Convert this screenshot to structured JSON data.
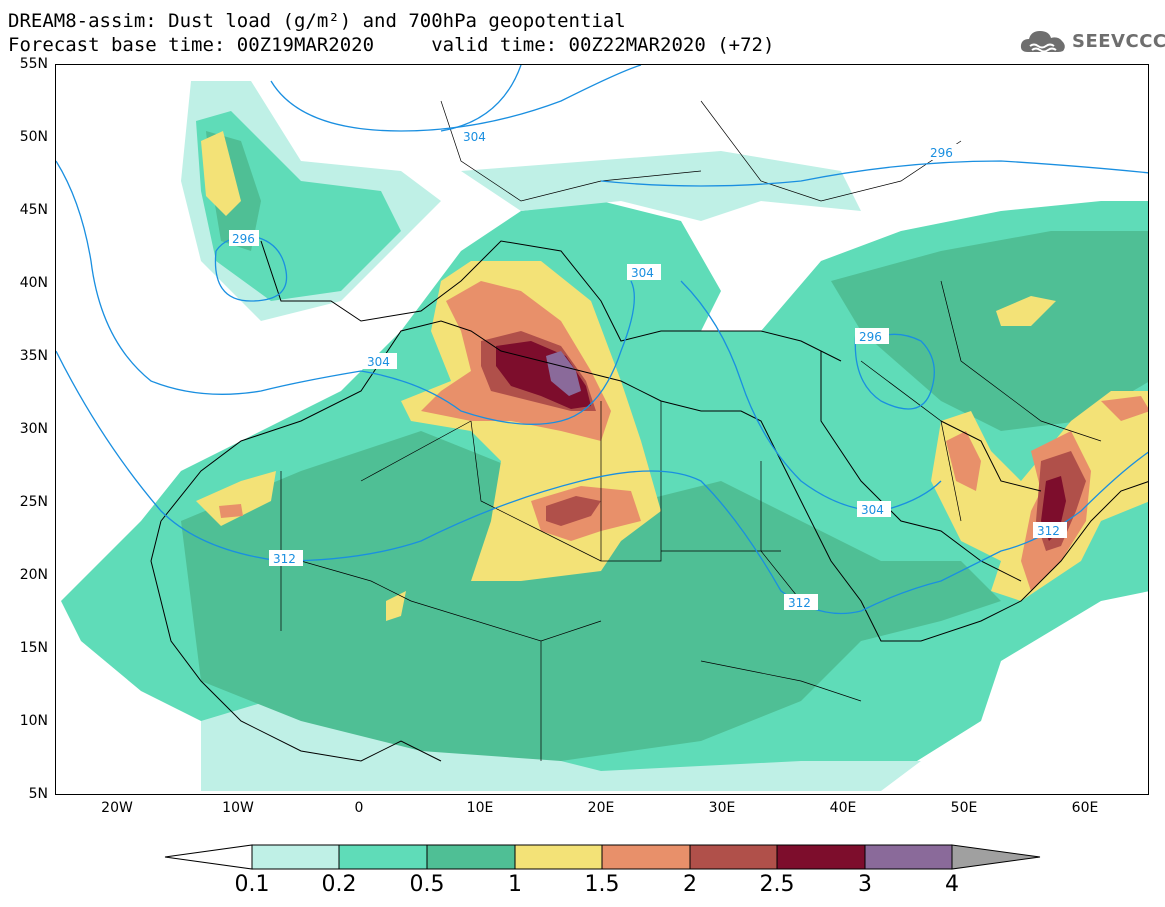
{
  "title": {
    "line1": "DREAM8-assim: Dust load (g/m²) and 700hPa geopotential",
    "line2": "Forecast base time: 00Z19MAR2020     valid time: 00Z22MAR2020 (+72)"
  },
  "logo": {
    "text": "SEEVCCC",
    "icon": "cloud-icon"
  },
  "axes": {
    "lat_labels": [
      "55N",
      "50N",
      "45N",
      "40N",
      "35N",
      "30N",
      "25N",
      "20N",
      "15N",
      "10N",
      "5N"
    ],
    "lon_labels": [
      "20W",
      "10W",
      "0",
      "10E",
      "20E",
      "30E",
      "40E",
      "50E",
      "60E"
    ]
  },
  "isolines": {
    "labels": [
      "304",
      "296",
      "296",
      "304",
      "304",
      "296",
      "304",
      "312",
      "312",
      "312"
    ]
  },
  "colorbar": {
    "ticks": [
      "0.1",
      "0.2",
      "0.5",
      "1",
      "1.5",
      "2",
      "2.5",
      "3",
      "4"
    ],
    "colors": [
      "#ffffff",
      "#bff0e6",
      "#5fdcb8",
      "#4fbf95",
      "#f3e277",
      "#e8906a",
      "#b0504a",
      "#7d0d2c",
      "#8a6a9a",
      "#a0a0a0"
    ]
  },
  "map": {
    "extent": {
      "lon_min": -25,
      "lon_max": 65,
      "lat_min": 5,
      "lat_max": 55
    },
    "dust_colors": {
      "c01": "#bff0e6",
      "c02": "#5fdcb8",
      "c05": "#4fbf95",
      "c1": "#f3e277",
      "c15": "#e8906a",
      "c2": "#b0504a",
      "c25": "#7d0d2c",
      "c3": "#8a6a9a"
    },
    "contour_color": "#1a8fe0"
  }
}
